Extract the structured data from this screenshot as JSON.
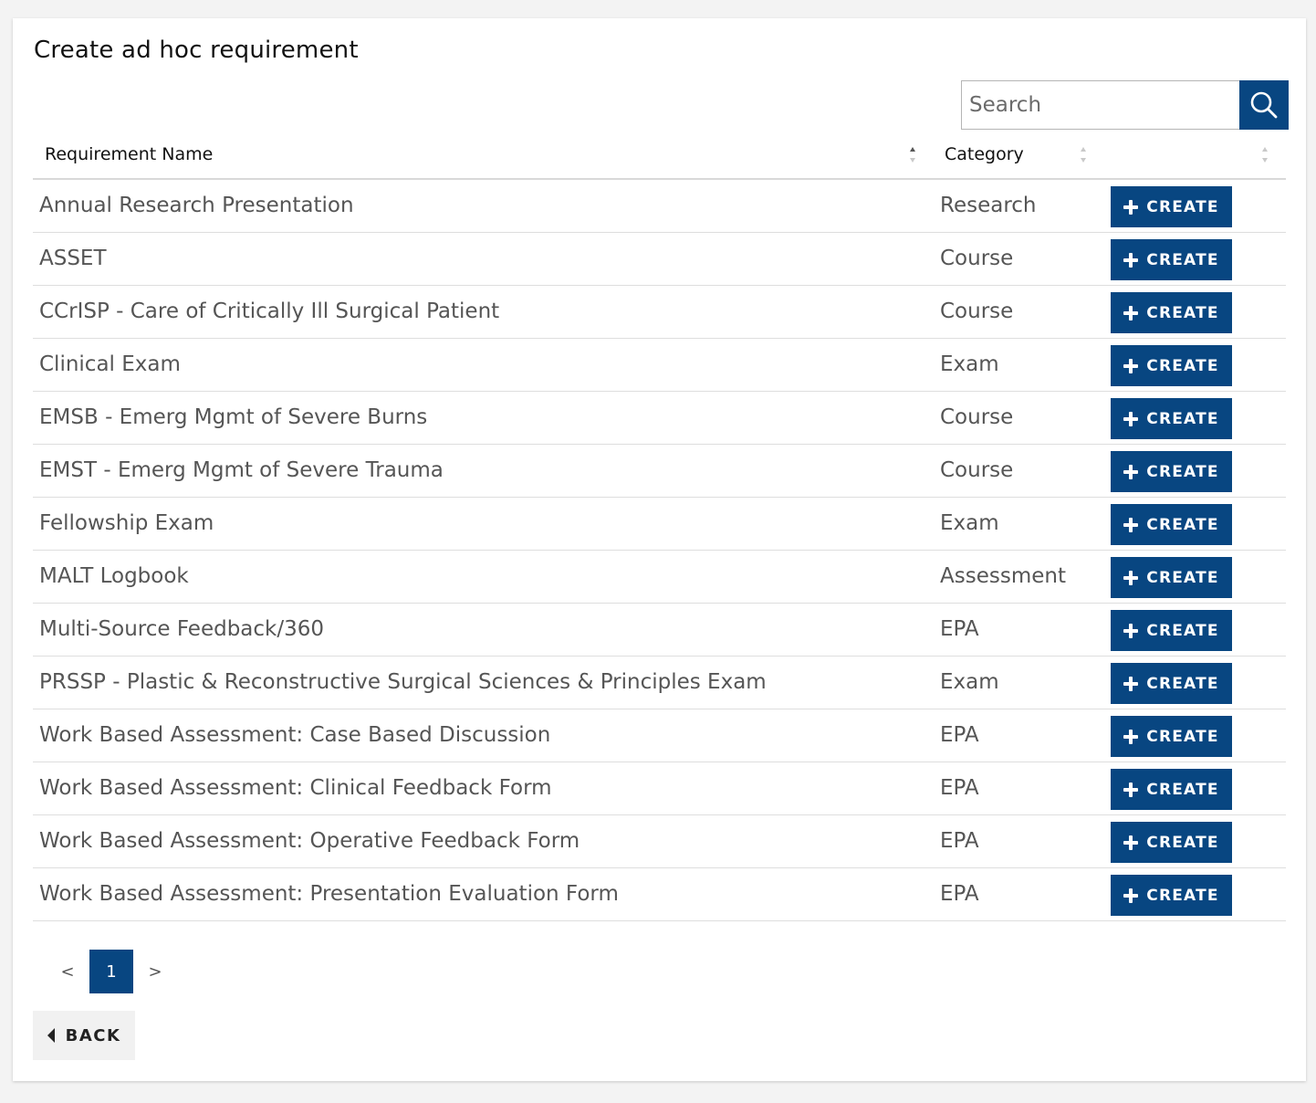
{
  "page_title": "Create ad hoc requirement",
  "search": {
    "placeholder": "Search",
    "value": "",
    "icon": "search-icon"
  },
  "table": {
    "columns": {
      "name": "Requirement Name",
      "category": "Category"
    },
    "create_label": "CREATE",
    "rows": [
      {
        "name": "Annual Research Presentation",
        "category": "Research"
      },
      {
        "name": "ASSET",
        "category": "Course"
      },
      {
        "name": "CCrISP - Care of Critically Ill Surgical Patient",
        "category": "Course"
      },
      {
        "name": "Clinical Exam",
        "category": "Exam"
      },
      {
        "name": "EMSB - Emerg Mgmt of Severe Burns",
        "category": "Course"
      },
      {
        "name": "EMST - Emerg Mgmt of Severe Trauma",
        "category": "Course"
      },
      {
        "name": "Fellowship Exam",
        "category": "Exam"
      },
      {
        "name": "MALT Logbook",
        "category": "Assessment"
      },
      {
        "name": "Multi-Source Feedback/360",
        "category": "EPA"
      },
      {
        "name": "PRSSP - Plastic & Reconstructive Surgical Sciences & Principles Exam",
        "category": "Exam"
      },
      {
        "name": "Work Based Assessment: Case Based Discussion",
        "category": "EPA"
      },
      {
        "name": "Work Based Assessment: Clinical Feedback Form",
        "category": "EPA"
      },
      {
        "name": "Work Based Assessment: Operative Feedback Form",
        "category": "EPA"
      },
      {
        "name": "Work Based Assessment: Presentation Evaluation Form",
        "category": "EPA"
      }
    ]
  },
  "pagination": {
    "prev": "<",
    "current": "1",
    "next": ">"
  },
  "back_label": "BACK",
  "colors": {
    "primary": "#084681",
    "text_muted": "#555555"
  }
}
